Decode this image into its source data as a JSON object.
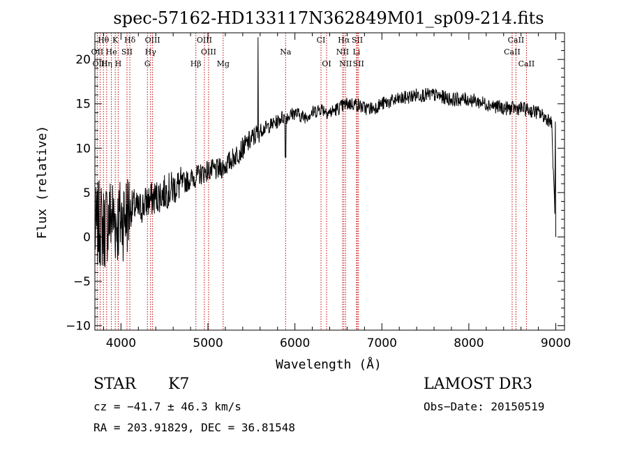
{
  "chart_data": {
    "type": "line",
    "title": "spec-57162-HD133117N362849M01_sp09-214.fits",
    "xlabel": "Wavelength (Å)",
    "ylabel": "Flux (relative)",
    "xlim": [
      3700,
      9100
    ],
    "ylim": [
      -10.5,
      23
    ],
    "x_ticks": [
      4000,
      5000,
      6000,
      7000,
      8000,
      9000
    ],
    "y_ticks": [
      -10,
      -5,
      0,
      5,
      10,
      15,
      20
    ],
    "spectrum": {
      "name": "flux",
      "x": [
        3700,
        3750,
        3800,
        3850,
        3900,
        3950,
        4000,
        4050,
        4100,
        4150,
        4200,
        4300,
        4400,
        4500,
        4600,
        4700,
        4800,
        4900,
        5000,
        5100,
        5200,
        5300,
        5400,
        5500,
        5550,
        5600,
        5700,
        5800,
        5850,
        5900,
        6000,
        6100,
        6200,
        6300,
        6400,
        6500,
        6600,
        6700,
        6800,
        6900,
        7000,
        7200,
        7400,
        7600,
        7800,
        8000,
        8200,
        8400,
        8600,
        8800,
        8950,
        9000
      ],
      "y": [
        0.5,
        1.5,
        1.0,
        2.0,
        2.5,
        1.5,
        2.0,
        2.5,
        3.0,
        3.5,
        3.0,
        4.0,
        4.5,
        5.0,
        5.5,
        6.0,
        6.5,
        7.0,
        7.5,
        7.5,
        8.0,
        9.0,
        10.0,
        11.0,
        11.5,
        12.0,
        12.5,
        13.0,
        13.5,
        13.5,
        14.0,
        13.5,
        14.0,
        14.5,
        14.0,
        14.5,
        15.0,
        15.0,
        14.5,
        14.5,
        15.0,
        15.5,
        16.0,
        16.0,
        15.5,
        15.5,
        15.0,
        14.5,
        14.5,
        14.0,
        13.0,
        0.0
      ]
    },
    "lines": [
      {
        "label": "Hθ",
        "wavelength": 3798,
        "row": 1
      },
      {
        "label": "K",
        "wavelength": 3934,
        "row": 1
      },
      {
        "label": "Hδ",
        "wavelength": 4102,
        "row": 1
      },
      {
        "label": "OIII",
        "wavelength": 4363,
        "row": 1
      },
      {
        "label": "OIII",
        "wavelength": 4959,
        "row": 1
      },
      {
        "label": "CI",
        "wavelength": 6300,
        "row": 1
      },
      {
        "label": "Hα",
        "wavelength": 6563,
        "row": 1
      },
      {
        "label": "SII",
        "wavelength": 6717,
        "row": 1
      },
      {
        "label": "CaII",
        "wavelength": 8542,
        "row": 1
      },
      {
        "label": "OII",
        "wavelength": 3727,
        "row": 2
      },
      {
        "label": "He",
        "wavelength": 3889,
        "row": 2
      },
      {
        "label": "SII",
        "wavelength": 4069,
        "row": 2
      },
      {
        "label": "Hγ",
        "wavelength": 4340,
        "row": 2
      },
      {
        "label": "OIII",
        "wavelength": 5007,
        "row": 2
      },
      {
        "label": "Na",
        "wavelength": 5893,
        "row": 2
      },
      {
        "label": "NII",
        "wavelength": 6548,
        "row": 2
      },
      {
        "label": "Li",
        "wavelength": 6708,
        "row": 2
      },
      {
        "label": "CaII",
        "wavelength": 8498,
        "row": 2
      },
      {
        "label": "OIII",
        "wavelength": 3760,
        "row": 3
      },
      {
        "label": "Hη",
        "wavelength": 3835,
        "row": 3
      },
      {
        "label": "H",
        "wavelength": 3968,
        "row": 3
      },
      {
        "label": "G",
        "wavelength": 4304,
        "row": 3
      },
      {
        "label": "Hβ",
        "wavelength": 4861,
        "row": 3
      },
      {
        "label": "Mg",
        "wavelength": 5175,
        "row": 3
      },
      {
        "label": "OI",
        "wavelength": 6364,
        "row": 3
      },
      {
        "label": "NII",
        "wavelength": 6583,
        "row": 3
      },
      {
        "label": "SII",
        "wavelength": 6731,
        "row": 3
      },
      {
        "label": "CaII",
        "wavelength": 8662,
        "row": 3
      }
    ]
  },
  "footer": {
    "object_class": "STAR",
    "subclass": "K7",
    "survey": "LAMOST DR3",
    "cz": "cz = −41.7 ± 46.3 km/s",
    "obs_date": "Obs−Date: 20150519",
    "coords": "RA = 203.91829, DEC =  36.81548"
  }
}
